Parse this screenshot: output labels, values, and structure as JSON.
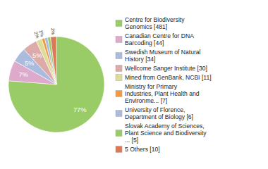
{
  "chart_data": {
    "type": "pie",
    "categories": [
      "Centre for Biodiversity\nGenomics [481]",
      "Canadian Centre for DNA\nBarcoding [44]",
      "Swedish Museum of Natural\nHistory [34]",
      "Wellcome Sanger Institute [30]",
      "Mined from GenBank, NCBI [11]",
      "Ministry for Primary\nIndustries, Plant Health and\nEnvironme... [7]",
      "University of Florence,\nDepartment of Biology [6]",
      "Slovak Academy of Sciences,\nPlant Science and Biodiversity\n... [5]",
      "5 Others [10]"
    ],
    "values": [
      77,
      7,
      5,
      5,
      2,
      1,
      1,
      1,
      2
    ],
    "value_labels": [
      "77%",
      "7%",
      "5%",
      "5%",
      "2%",
      "1%",
      null,
      null,
      "2%"
    ],
    "colors": [
      "#99cc66",
      "#ddaacc",
      "#aabbdd",
      "#ddaaaa",
      "#dddd99",
      "#ee9944",
      "#aabbdd",
      "#99cc66",
      "#dd7755"
    ],
    "data_labels": true,
    "legend": "right"
  }
}
